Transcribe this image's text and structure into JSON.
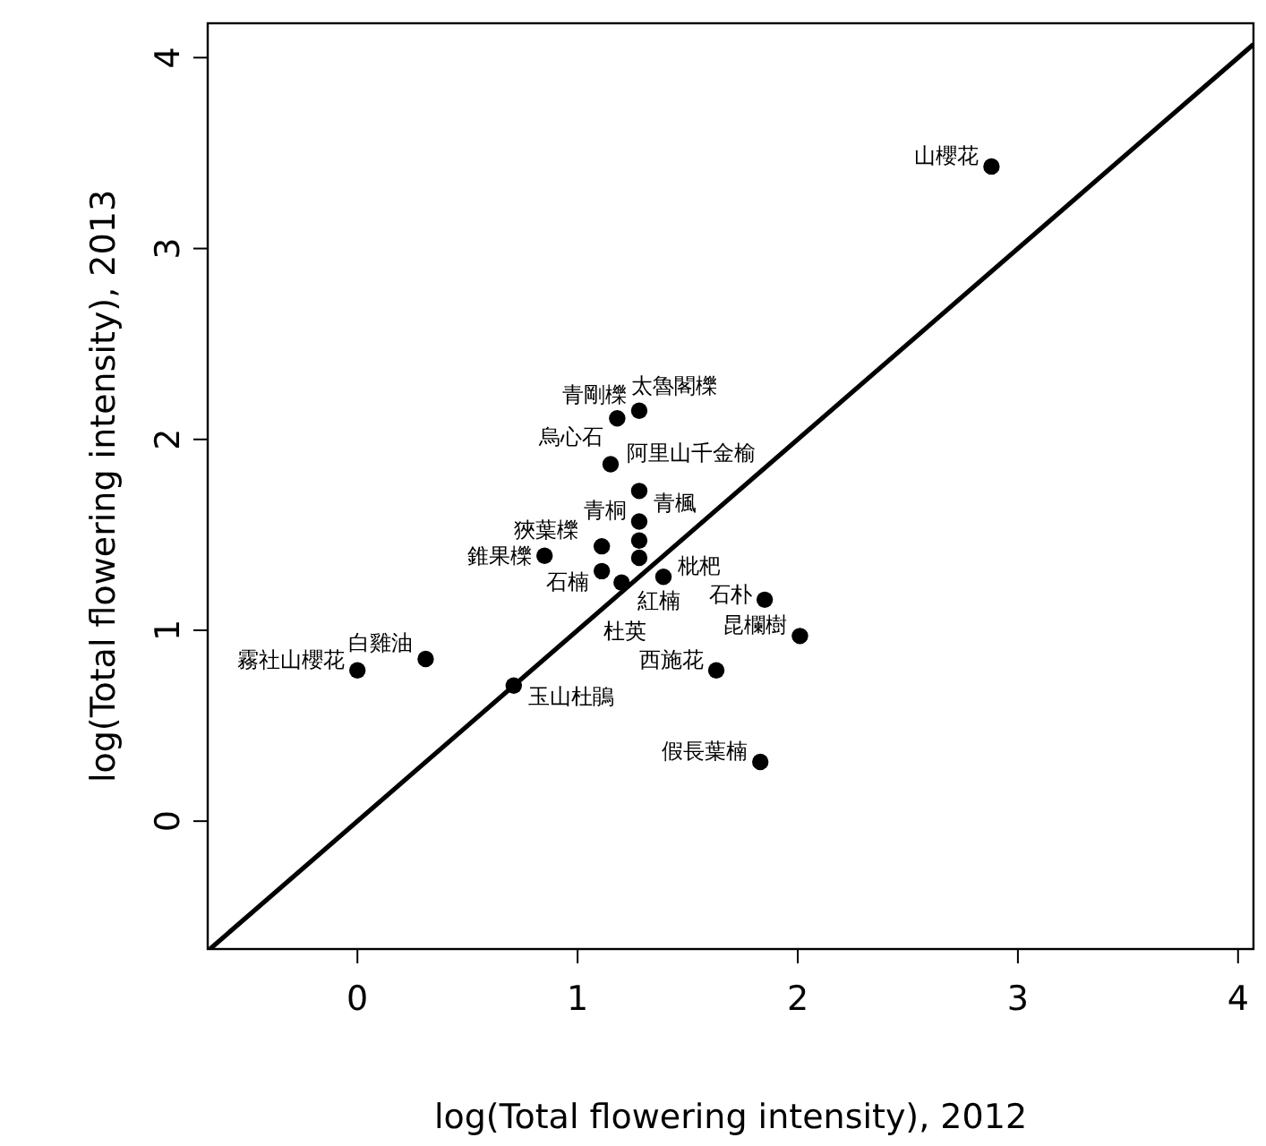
{
  "chart_data": {
    "type": "scatter",
    "xlabel": "log(Total flowering intensity), 2012",
    "ylabel": "log(Total flowering intensity), 2013",
    "xlim": [
      -0.68,
      4.07
    ],
    "ylim": [
      -0.67,
      4.18
    ],
    "xticks": [
      0,
      1,
      2,
      3,
      4
    ],
    "yticks": [
      0,
      1,
      2,
      3,
      4
    ],
    "grid": false,
    "series": [
      {
        "type": "scatter",
        "marker": "circle",
        "color": "#000000",
        "x": [
          0.0,
          0.31,
          0.71,
          1.63,
          1.83,
          2.01,
          1.85,
          2.88,
          1.28,
          1.18,
          1.15,
          1.28,
          1.28,
          0.85,
          1.11,
          1.28,
          1.28,
          1.11,
          1.2,
          1.39
        ],
        "values": [
          0.79,
          0.85,
          0.71,
          0.79,
          0.31,
          0.97,
          1.16,
          3.43,
          2.15,
          2.11,
          1.87,
          1.73,
          1.57,
          1.39,
          1.44,
          1.47,
          1.38,
          1.31,
          1.25,
          1.28
        ]
      },
      {
        "type": "line",
        "color": "#000000",
        "x": [
          -0.67,
          4.07
        ],
        "values": [
          -0.67,
          4.07
        ]
      }
    ],
    "annotations": [
      {
        "text": "霧社山櫻花",
        "x": 0.0,
        "y": 0.79
      },
      {
        "text": "白雞油",
        "x": 0.31,
        "y": 0.85
      },
      {
        "text": "玉山杜鵑",
        "x": 0.71,
        "y": 0.71
      },
      {
        "text": "西施花",
        "x": 1.63,
        "y": 0.79
      },
      {
        "text": "假長葉楠",
        "x": 1.83,
        "y": 0.31
      },
      {
        "text": "昆欄樹",
        "x": 2.01,
        "y": 0.97
      },
      {
        "text": "石朴",
        "x": 1.85,
        "y": 1.16
      },
      {
        "text": "山櫻花",
        "x": 2.88,
        "y": 3.43
      },
      {
        "text": "青剛櫟",
        "x": 1.28,
        "y": 2.15
      },
      {
        "text": "太魯閣櫟",
        "x": 1.18,
        "y": 2.11
      },
      {
        "text": "烏心石",
        "x": 1.15,
        "y": 1.87
      },
      {
        "text": "阿里山千金榆",
        "x": 1.28,
        "y": 1.73
      },
      {
        "text": "青桐",
        "x": 1.28,
        "y": 1.57
      },
      {
        "text": "錐果櫟",
        "x": 0.85,
        "y": 1.39
      },
      {
        "text": "狹葉櫟",
        "x": 1.11,
        "y": 1.44
      },
      {
        "text": "青楓",
        "x": 1.28,
        "y": 1.47
      },
      {
        "text": "紅楠",
        "x": 1.28,
        "y": 1.38
      },
      {
        "text": "石楠",
        "x": 1.11,
        "y": 1.31
      },
      {
        "text": "杜英",
        "x": 1.2,
        "y": 1.25
      },
      {
        "text": "枇杷",
        "x": 1.39,
        "y": 1.28
      }
    ]
  }
}
